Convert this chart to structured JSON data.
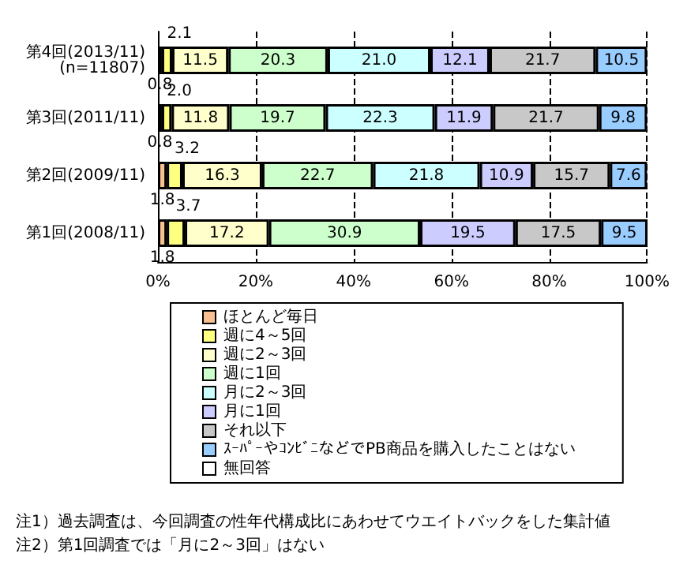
{
  "chart_data": {
    "type": "bar",
    "orientation": "horizontal",
    "stacked": true,
    "categories": [
      "第4回(2013/11)\n(n=11807)",
      "第3回(2011/11)",
      "第2回(2009/11)",
      "第1回(2008/11)"
    ],
    "series": [
      {
        "name": "ほとんど毎日",
        "color": "#f8c090",
        "values": [
          0.8,
          0.8,
          1.8,
          1.8
        ],
        "value_labels": [
          "0.8",
          "0.8",
          "1.8",
          "1.8"
        ]
      },
      {
        "name": "週に4～5回",
        "color": "#ffff80",
        "values": [
          2.1,
          2.0,
          3.2,
          3.7
        ],
        "value_labels": [
          "2.1",
          "2.0",
          "3.2",
          "3.7"
        ]
      },
      {
        "name": "週に2～3回",
        "color": "#ffffcc",
        "values": [
          11.5,
          11.8,
          16.3,
          17.2
        ],
        "value_labels": [
          "11.5",
          "11.8",
          "16.3",
          "17.2"
        ]
      },
      {
        "name": "週に1回",
        "color": "#ccffcc",
        "values": [
          20.3,
          19.7,
          22.7,
          30.9
        ],
        "value_labels": [
          "20.3",
          "19.7",
          "22.7",
          "30.9"
        ]
      },
      {
        "name": "月に2～3回",
        "color": "#ccffff",
        "values": [
          21.0,
          22.3,
          21.8,
          null
        ],
        "value_labels": [
          "21.0",
          "22.3",
          "21.8",
          null
        ]
      },
      {
        "name": "月に1回",
        "color": "#ccccff",
        "values": [
          12.1,
          11.9,
          10.9,
          19.5
        ],
        "value_labels": [
          "12.1",
          "11.9",
          "10.9",
          "19.5"
        ]
      },
      {
        "name": "それ以下",
        "color": "#c8c8c8",
        "values": [
          21.7,
          21.7,
          15.7,
          17.5
        ],
        "value_labels": [
          "21.7",
          "21.7",
          "15.7",
          "17.5"
        ]
      },
      {
        "name": "ｽｰﾊﾟｰやｺﾝﾋﾞﾆなどでPB商品を購入したことはない",
        "color": "#99ccff",
        "values": [
          10.5,
          9.8,
          7.6,
          9.5
        ],
        "value_labels": [
          "10.5",
          "9.8",
          "7.6",
          "9.5"
        ]
      },
      {
        "name": "無回答",
        "color": "#ffffff",
        "values": [
          null,
          null,
          null,
          null
        ]
      }
    ],
    "xlim": [
      0,
      100
    ],
    "xticks": [
      {
        "value": 0,
        "label": "0%"
      },
      {
        "value": 20,
        "label": "20%"
      },
      {
        "value": 40,
        "label": "40%"
      },
      {
        "value": 60,
        "label": "60%"
      },
      {
        "value": 80,
        "label": "80%"
      },
      {
        "value": 100,
        "label": "100%"
      }
    ],
    "grid": "x",
    "legend": "bottom",
    "annotations": [
      "注1）過去調査は、今回調査の性年代構成比にあわせてウエイトバックをした集計値",
      "注2）第1回調査では「月に2～3回」はない"
    ]
  }
}
